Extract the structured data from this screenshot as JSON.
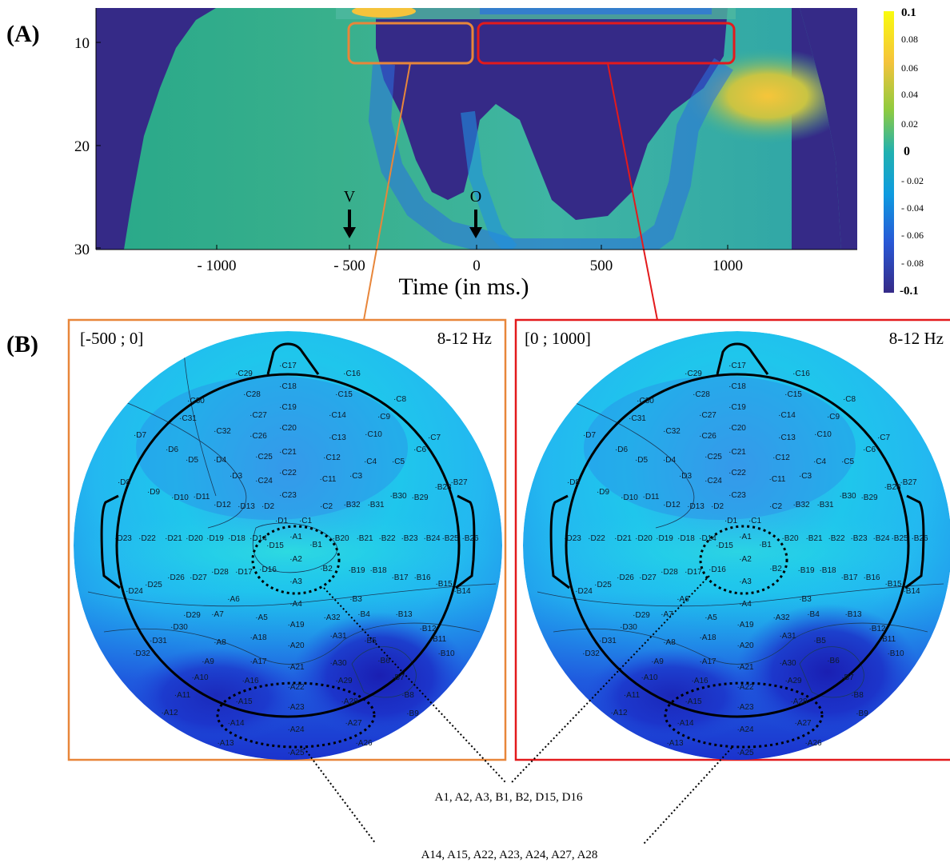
{
  "panel_a": {
    "label": "(A)",
    "y_ticks": [
      "10",
      "20",
      "30"
    ],
    "x_ticks": [
      "- 1000",
      "- 500",
      "0",
      "500",
      "1000"
    ],
    "x_label": "Time (in ms.)",
    "markers": [
      {
        "label": "V",
        "time_ms": -500
      },
      {
        "label": "O",
        "time_ms": 0
      }
    ],
    "colorbar": {
      "ticks": [
        "0.1",
        "0.08",
        "0.06",
        "0.04",
        "0.02",
        "0",
        "- 0.02",
        "- 0.04",
        "- 0.06",
        "- 0.08",
        "-0.1"
      ],
      "colors": [
        "#fde725",
        "#f4b53a",
        "#35b779",
        "#1fa187",
        "#0e7fd5",
        "#2b3e9e",
        "#352a87"
      ]
    },
    "highlight_boxes": [
      {
        "window_ms": [
          -500,
          0
        ],
        "freq_hz": [
          8,
          12
        ],
        "color": "#e8863a"
      },
      {
        "window_ms": [
          0,
          1000
        ],
        "freq_hz": [
          8,
          12
        ],
        "color": "#e31a1c"
      }
    ]
  },
  "panel_b": {
    "label": "(B)",
    "maps": [
      {
        "window": "[-500 ; 0]",
        "band": "8-12 Hz",
        "frame_color": "#e8863a"
      },
      {
        "window": "[0 ; 1000]",
        "band": "8-12 Hz",
        "frame_color": "#e31a1c"
      }
    ],
    "electrodes": [
      "C17",
      "C16",
      "C29",
      "C18",
      "C28",
      "C15",
      "C8",
      "C19",
      "C30",
      "C27",
      "C14",
      "C9",
      "C31",
      "C20",
      "C32",
      "C26",
      "C13",
      "C10",
      "C7",
      "D7",
      "C21",
      "C6",
      "D6",
      "D5",
      "D4",
      "C25",
      "C12",
      "C4",
      "C5",
      "C22",
      "D3",
      "C3",
      "C24",
      "C11",
      "D8",
      "B27",
      "D9",
      "D10",
      "D11",
      "C23",
      "B28",
      "B30",
      "B29",
      "D12",
      "D13",
      "D2",
      "C2",
      "B32",
      "B31",
      "D1",
      "C1",
      "D23",
      "D22",
      "D21",
      "D20",
      "D19",
      "D18",
      "D14",
      "A1",
      "B20",
      "B21",
      "B22",
      "B23",
      "B24",
      "B25",
      "B26",
      "D15",
      "B1",
      "A2",
      "D16",
      "B2",
      "D26",
      "D28",
      "D17",
      "B19",
      "B18",
      "B17",
      "B16",
      "D27",
      "A3",
      "D25",
      "B15",
      "B14",
      "D24",
      "A6",
      "B3",
      "A4",
      "D29",
      "A7",
      "A5",
      "A19",
      "A32",
      "B4",
      "B13",
      "D30",
      "B12",
      "D31",
      "A8",
      "A18",
      "A31",
      "B5",
      "B11",
      "A20",
      "D32",
      "A9",
      "A17",
      "A21",
      "A30",
      "B6",
      "B10",
      "A10",
      "A16",
      "A22",
      "A29",
      "B7",
      "A11",
      "A15",
      "A23",
      "A28",
      "B8",
      "A12",
      "B9",
      "A14",
      "A24",
      "A27",
      "A13",
      "A25",
      "A26"
    ],
    "cluster_labels": {
      "central": "A1, A2, A3, B1, B2, D15, D16",
      "posterior": "A14, A15, A22, A23, A24, A27, A28"
    }
  }
}
